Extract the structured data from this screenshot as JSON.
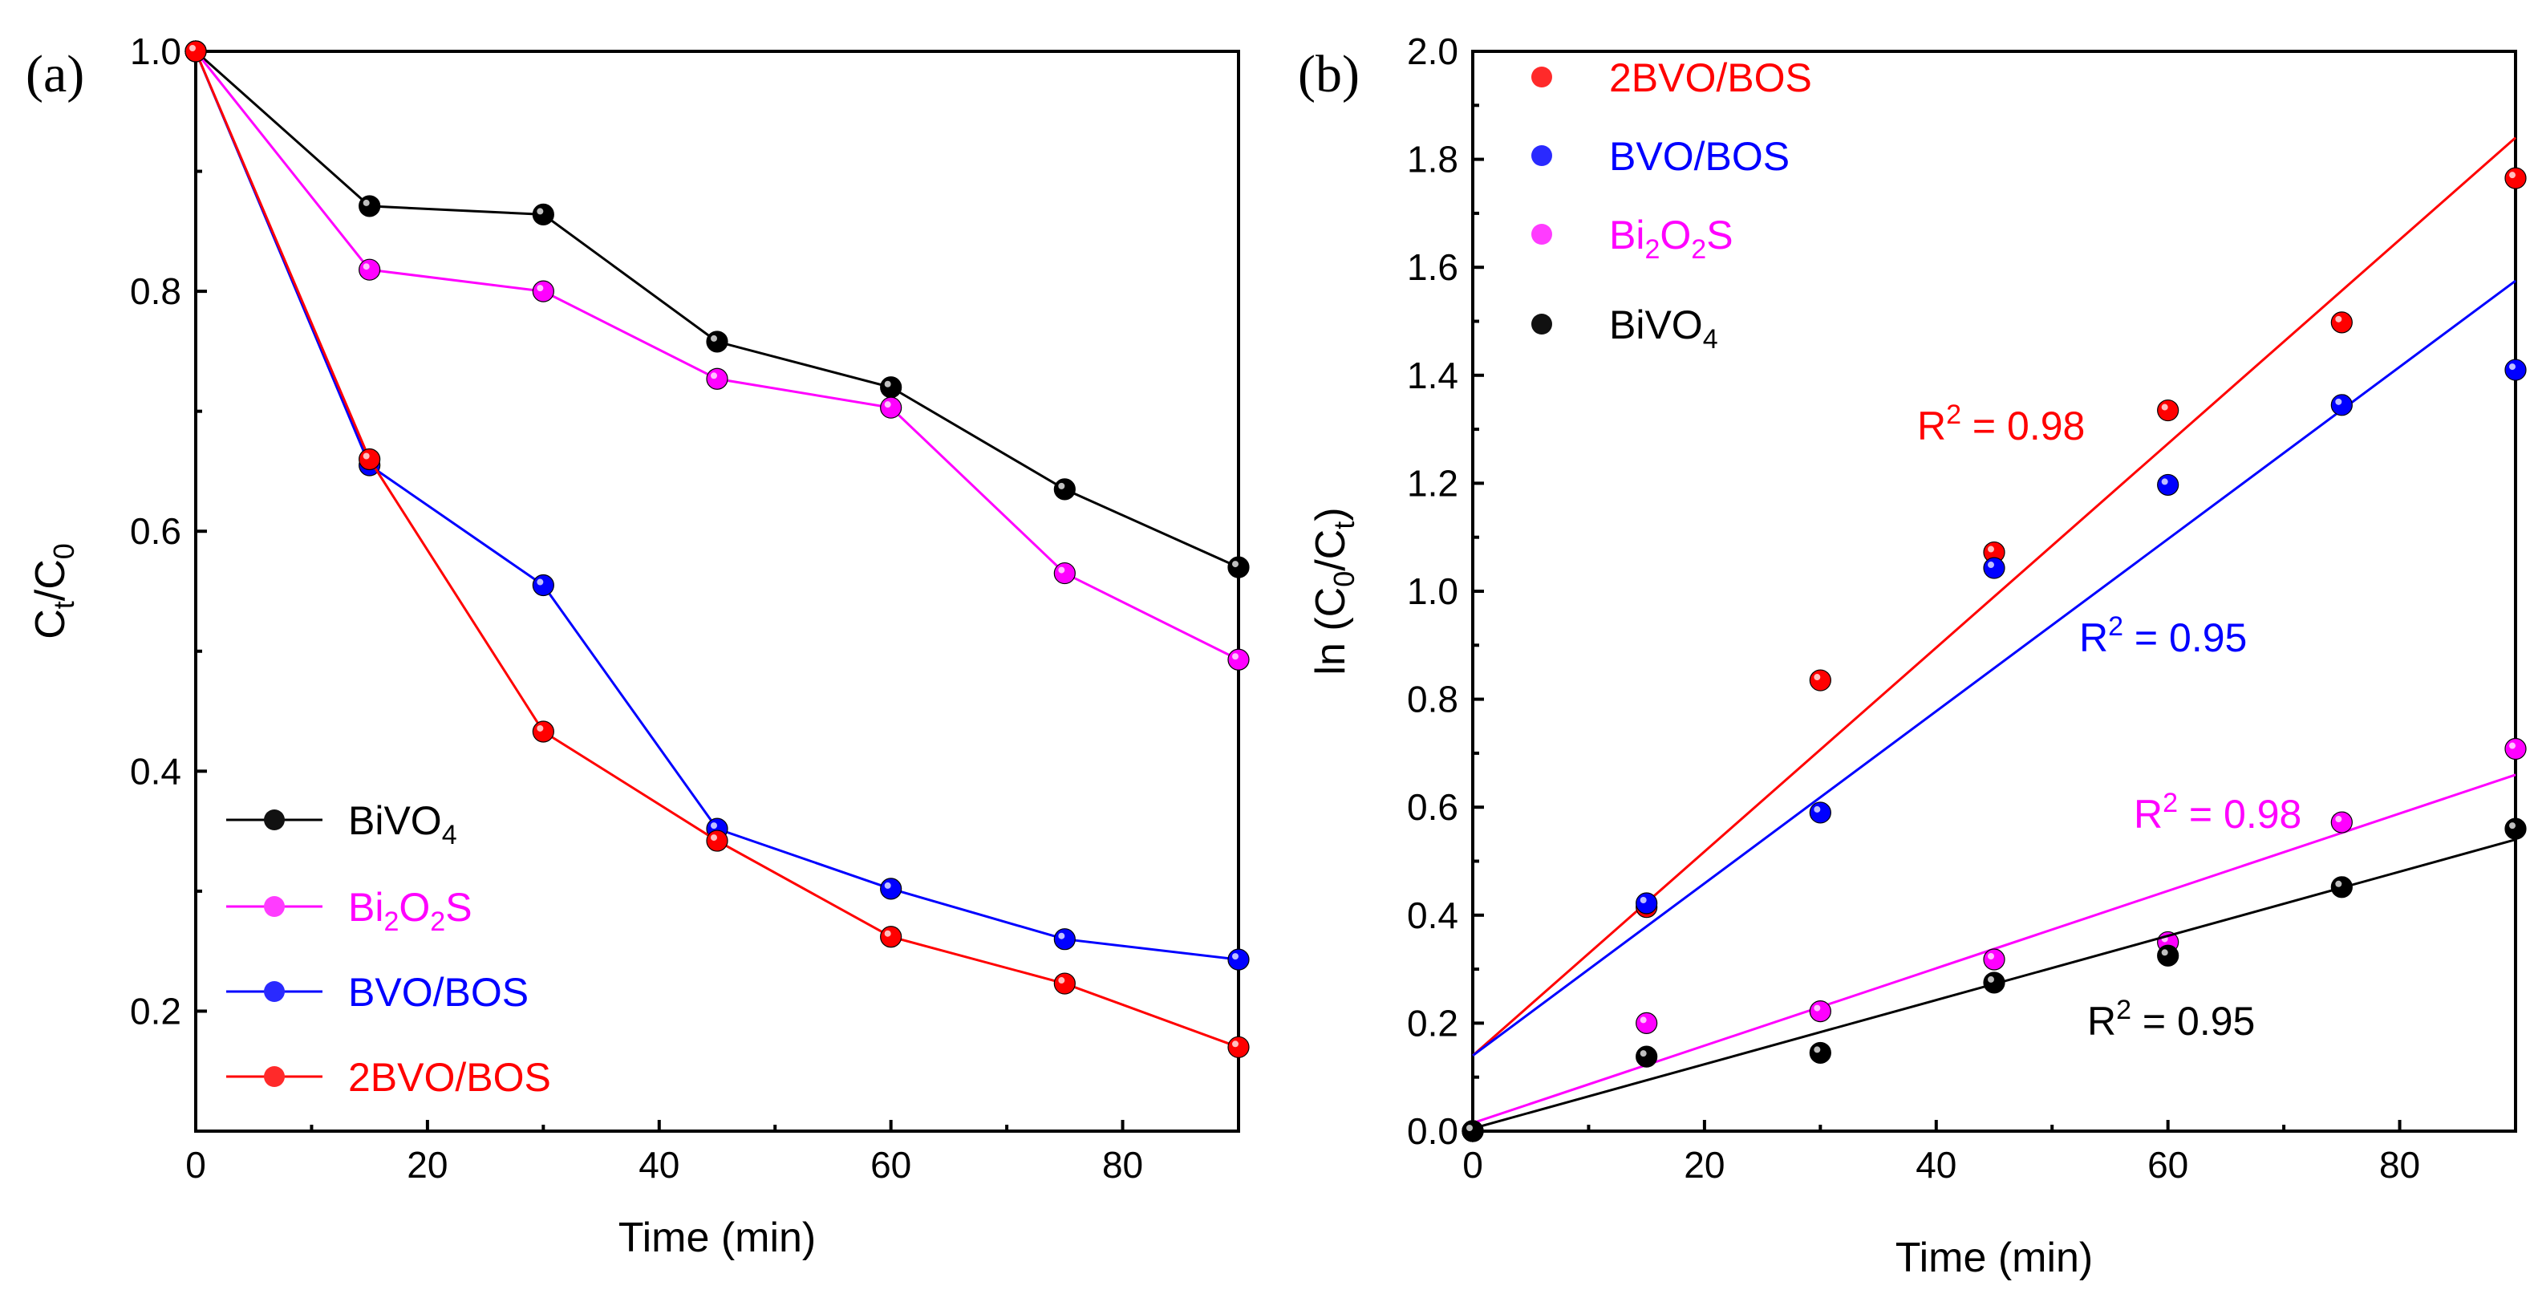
{
  "colors": {
    "black": "#000000",
    "magenta": "#ff00ff",
    "blue": "#0000ff",
    "red": "#ff0000"
  },
  "panel_a": {
    "label": "(a)",
    "chart_data": {
      "type": "line",
      "xlabel": "Time (min)",
      "ylabel_main": "C",
      "ylabel_sub1": "t",
      "ylabel_mid": "/C",
      "ylabel_sub2": "0",
      "xlim": [
        0,
        90
      ],
      "ylim": [
        0.1,
        1.0
      ],
      "xticks": [
        0,
        20,
        40,
        60,
        80
      ],
      "yticks": [
        0.2,
        0.4,
        0.6,
        0.8,
        1.0
      ],
      "ytick_labels": [
        "0.2",
        "0.4",
        "0.6",
        "0.8",
        "1.0"
      ],
      "x": [
        0,
        15,
        30,
        45,
        60,
        75,
        90
      ],
      "series": [
        {
          "key": "bivo4",
          "name": "BiVO",
          "name_sub": "4",
          "color": "#000000",
          "values": [
            1.0,
            0.871,
            0.864,
            0.758,
            0.72,
            0.635,
            0.57
          ]
        },
        {
          "key": "bi2o2s",
          "name": "Bi",
          "name_parts": [
            "Bi",
            "2",
            "O",
            "2",
            "S"
          ],
          "color": "#ff00ff",
          "values": [
            1.0,
            0.818,
            0.8,
            0.727,
            0.703,
            0.565,
            0.493
          ]
        },
        {
          "key": "bvobos",
          "name": "BVO/BOS",
          "color": "#0000ff",
          "values": [
            1.0,
            0.655,
            0.555,
            0.352,
            0.302,
            0.26,
            0.243
          ]
        },
        {
          "key": "2bvobos",
          "name": "2BVO/BOS",
          "color": "#ff0000",
          "values": [
            1.0,
            0.66,
            0.433,
            0.342,
            0.262,
            0.223,
            0.17
          ]
        }
      ]
    }
  },
  "panel_b": {
    "label": "(b)",
    "chart_data": {
      "type": "scatter",
      "xlabel": "Time (min)",
      "ylabel_prefix": "ln (C",
      "ylabel_sub1": "0",
      "ylabel_mid": "/C",
      "ylabel_sub2": "t",
      "ylabel_suffix": ")",
      "xlim": [
        0,
        90
      ],
      "ylim": [
        0.0,
        2.0
      ],
      "xticks": [
        0,
        20,
        40,
        60,
        80
      ],
      "yticks": [
        0.0,
        0.2,
        0.4,
        0.6,
        0.8,
        1.0,
        1.2,
        1.4,
        1.6,
        1.8,
        2.0
      ],
      "ytick_labels": [
        "0.0",
        "0.2",
        "0.4",
        "0.6",
        "0.8",
        "1.0",
        "1.2",
        "1.4",
        "1.6",
        "1.8",
        "2.0"
      ],
      "x": [
        0,
        15,
        30,
        45,
        60,
        75,
        90
      ],
      "series": [
        {
          "key": "2bvobos",
          "name": "2BVO/BOS",
          "color": "#ff0000",
          "values": [
            0.0,
            0.415,
            0.835,
            1.072,
            1.335,
            1.498,
            1.765
          ],
          "fit": [
            0.14,
            1.84
          ],
          "r2_prefix": "R",
          "r2_sup": "2",
          "r2_value": " = 0.98"
        },
        {
          "key": "bvobos",
          "name": "BVO/BOS",
          "color": "#0000ff",
          "values": [
            0.0,
            0.422,
            0.59,
            1.043,
            1.197,
            1.345,
            1.41
          ],
          "fit": [
            0.14,
            1.575
          ],
          "r2_prefix": "R",
          "r2_sup": "2",
          "r2_value": " = 0.95"
        },
        {
          "key": "bi2o2s",
          "name": "Bi2O2S",
          "name_parts": [
            "Bi",
            "2",
            "O",
            "2",
            "S"
          ],
          "color": "#ff00ff",
          "values": [
            0.0,
            0.2,
            0.222,
            0.318,
            0.35,
            0.572,
            0.708
          ],
          "fit": [
            0.015,
            0.66
          ],
          "r2_prefix": "R",
          "r2_sup": "2",
          "r2_value": " = 0.98"
        },
        {
          "key": "bivo4",
          "name": "BiVO",
          "name_sub": "4",
          "color": "#000000",
          "values": [
            0.0,
            0.138,
            0.145,
            0.275,
            0.325,
            0.452,
            0.56
          ],
          "fit": [
            0.005,
            0.54
          ],
          "r2_prefix": "R",
          "r2_sup": "2",
          "r2_value": " = 0.95"
        }
      ]
    }
  }
}
